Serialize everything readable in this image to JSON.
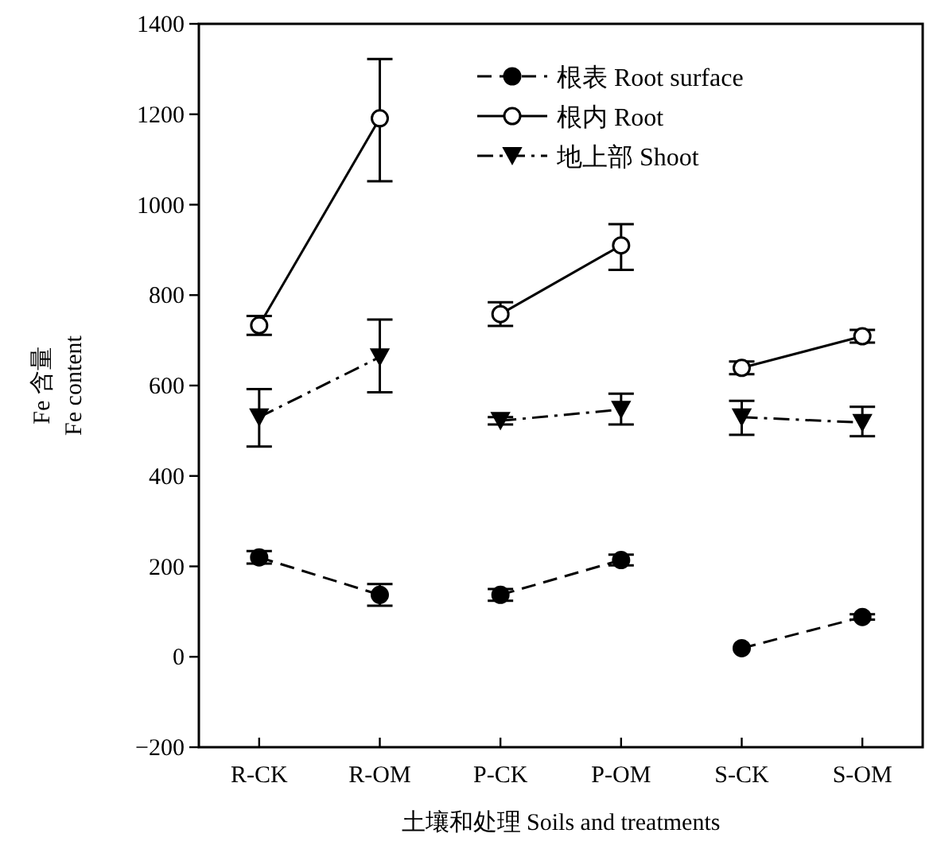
{
  "chart_data": {
    "type": "line",
    "xlabel": "土壤和处理 Soils and treatments",
    "ylabel": "Fe 含量\nFe content",
    "categories": [
      "R-CK",
      "R-OM",
      "P-CK",
      "P-OM",
      "S-CK",
      "S-OM"
    ],
    "ylim": [
      -200,
      1400
    ],
    "yticks": [
      -200,
      0,
      200,
      400,
      600,
      800,
      1000,
      1200,
      1400
    ],
    "grid": false,
    "legend": "top right",
    "series": [
      {
        "name": "根表 Root surface",
        "color": "#000000",
        "marker": "circle",
        "line_style": "dashed",
        "values": [
          220,
          137,
          null,
          null,
          null,
          null
        ],
        "errors": [
          14,
          24,
          null,
          null,
          null,
          null
        ]
      },
      {
        "color": "#000000",
        "marker": "circle",
        "line_style": "dashed",
        "values": [
          null,
          null,
          137,
          214,
          null,
          null
        ],
        "errors": [
          null,
          null,
          13,
          12,
          null,
          null
        ]
      },
      {
        "color": "#000000",
        "marker": "circle",
        "line_style": "dashed",
        "values": [
          null,
          null,
          null,
          null,
          19,
          88
        ],
        "errors": [
          null,
          null,
          null,
          null,
          null,
          6
        ]
      },
      {
        "name": "根内  Root",
        "color": "#000000",
        "marker": "circle_open",
        "line_style": "solid",
        "values": [
          733,
          1191,
          null,
          null,
          null,
          null
        ],
        "errors": [
          21,
          [
            1052,
            1322
          ],
          null,
          null,
          null,
          null
        ]
      },
      {
        "color": "#000000",
        "marker": "circle_open",
        "line_style": "solid",
        "values": [
          null,
          null,
          758,
          910,
          null,
          null
        ],
        "errors": [
          null,
          null,
          26,
          [
            856,
            957
          ],
          null,
          null
        ]
      },
      {
        "color": "#000000",
        "marker": "circle_open",
        "line_style": "solid",
        "values": [
          null,
          null,
          null,
          null,
          639,
          709
        ],
        "errors": [
          null,
          null,
          null,
          null,
          14,
          14
        ]
      },
      {
        "name": "地上部 Shoot",
        "color": "#000000",
        "marker": "triangle",
        "line_style": "dashdot",
        "values": [
          530,
          663,
          null,
          null,
          null,
          null
        ],
        "errors": [
          [
            465,
            592
          ],
          [
            585,
            746
          ],
          null,
          null,
          null,
          null
        ]
      },
      {
        "color": "#000000",
        "marker": "triangle",
        "line_style": "dashdot",
        "values": [
          null,
          null,
          522,
          547,
          null,
          null
        ],
        "errors": [
          null,
          null,
          8,
          [
            514,
            582
          ],
          null,
          null
        ]
      },
      {
        "color": "#000000",
        "marker": "triangle",
        "line_style": "dashdot",
        "values": [
          null,
          null,
          null,
          null,
          530,
          518
        ],
        "errors": [
          null,
          null,
          null,
          null,
          [
            491,
            566
          ],
          [
            488,
            553
          ]
        ]
      }
    ]
  }
}
